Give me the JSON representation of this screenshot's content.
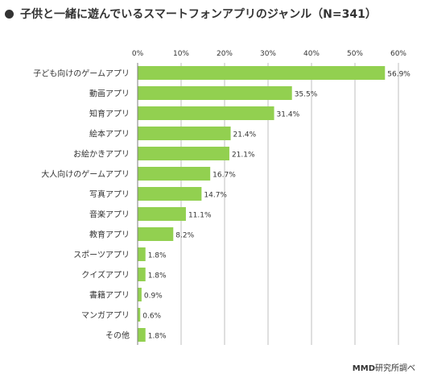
{
  "header": {
    "title": "子供と一緒に遊んでいるスマートフォンアプリのジャンル（N=341）"
  },
  "footer": {
    "brand": "MMD",
    "suffix": "研究所調べ"
  },
  "colors": {
    "bar": "#92d050",
    "grid": "#bfbfbf",
    "text": "#333333"
  },
  "chart_data": {
    "type": "bar",
    "orientation": "horizontal",
    "title": "子供と一緒に遊んでいるスマートフォンアプリのジャンル（N=341）",
    "categories": [
      "子ども向けのゲームアプリ",
      "動画アプリ",
      "知育アプリ",
      "絵本アプリ",
      "お絵かきアプリ",
      "大人向けのゲームアプリ",
      "写真アプリ",
      "音楽アプリ",
      "教育アプリ",
      "スポーツアプリ",
      "クイズアプリ",
      "書籍アプリ",
      "マンガアプリ",
      "その他"
    ],
    "values": [
      56.9,
      35.5,
      31.4,
      21.4,
      21.1,
      16.7,
      14.7,
      11.1,
      8.2,
      1.8,
      1.8,
      0.9,
      0.6,
      1.8
    ],
    "value_labels": [
      "56.9%",
      "35.5%",
      "31.4%",
      "21.4%",
      "21.1%",
      "16.7%",
      "14.7%",
      "11.1%",
      "8.2%",
      "1.8%",
      "1.8%",
      "0.9%",
      "0.6%",
      "1.8%"
    ],
    "xlim": [
      0,
      60
    ],
    "xticks": [
      0,
      10,
      20,
      30,
      40,
      50,
      60
    ],
    "xtick_labels": [
      "0%",
      "10%",
      "20%",
      "30%",
      "40%",
      "50%",
      "60%"
    ],
    "grid": true,
    "xlabel": "",
    "ylabel": ""
  }
}
